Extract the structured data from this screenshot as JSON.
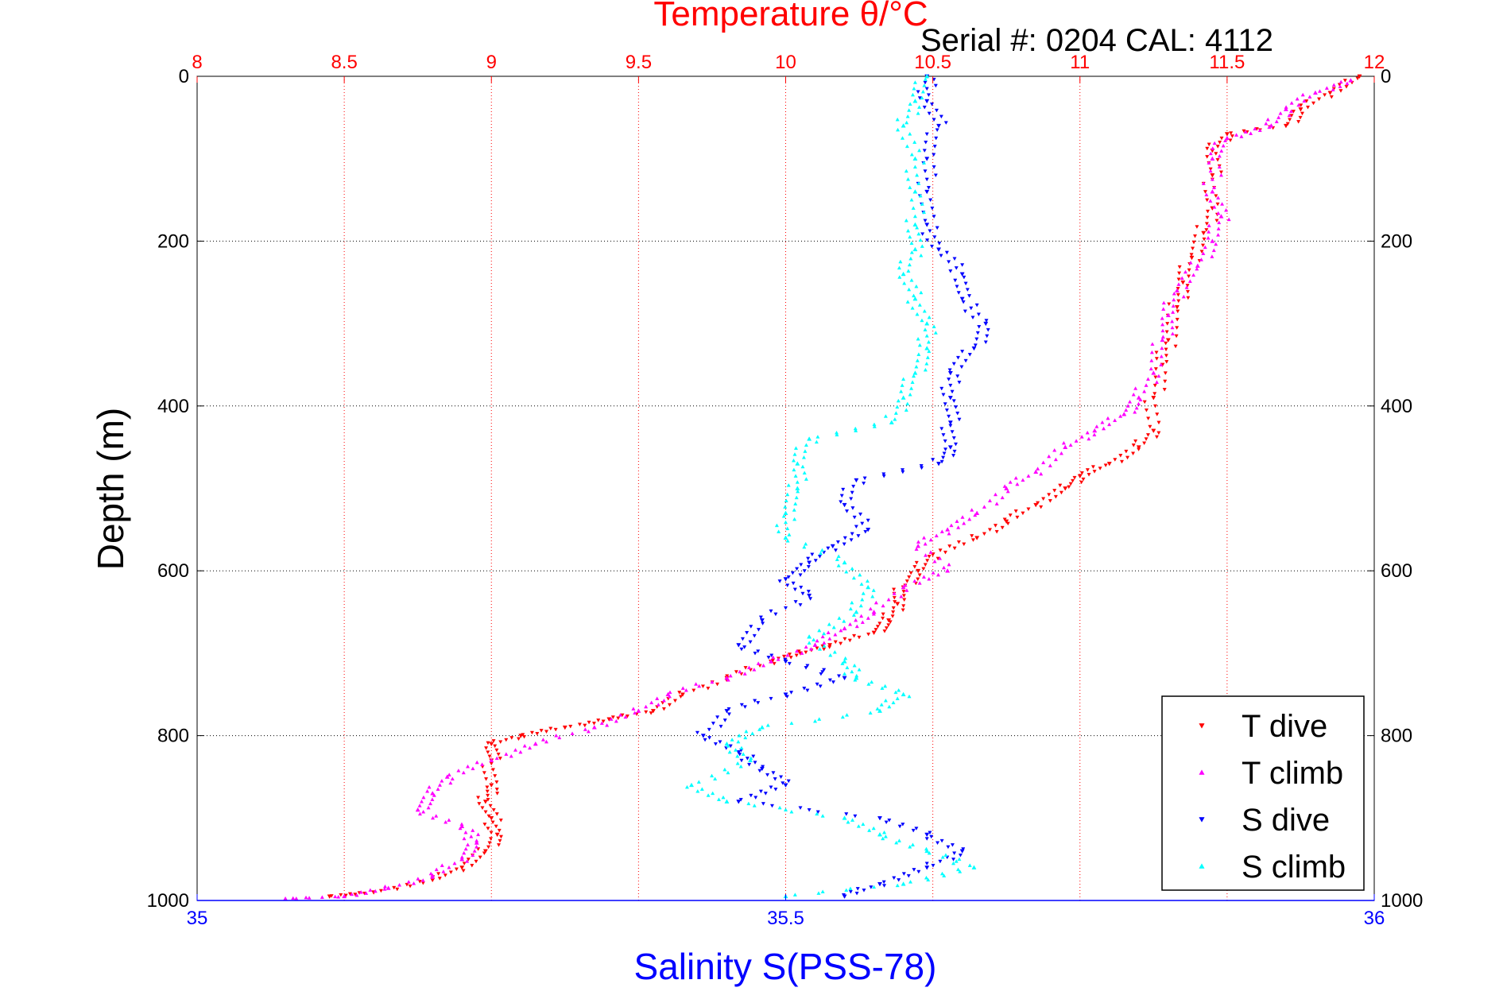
{
  "chart_data": {
    "type": "scatter",
    "title": "Temperature θ/°C",
    "subtitle": "Serial #: 0204  CAL: 4112",
    "ylabel": "Depth (m)",
    "xlabel": "Salinity S(PSS-78)",
    "xlabel_top": "Temperature θ/°C",
    "ylim": [
      1000,
      0
    ],
    "temperature_range": [
      8,
      12
    ],
    "salinity_range": [
      35,
      36
    ],
    "top_ticks": [
      "8",
      "8.5",
      "9",
      "9.5",
      "10",
      "10.5",
      "11",
      "11.5",
      "12"
    ],
    "bottom_ticks": [
      "35",
      "35.5",
      "36"
    ],
    "left_ticks": [
      "0",
      "200",
      "400",
      "600",
      "800",
      "1000"
    ],
    "right_ticks": [
      "0",
      "200",
      "400",
      "600",
      "800",
      "1000"
    ],
    "grid": true,
    "legend_position": "bottom-right",
    "colors": {
      "temperature_axis": "#ff0000",
      "salinity_axis": "#0000ff",
      "t_dive": "#ff0000",
      "t_climb": "#ff00ff",
      "s_dive": "#0000ff",
      "s_climb": "#00ffff"
    },
    "legend": [
      "T dive",
      "T climb",
      "S dive",
      "S climb"
    ],
    "series": [
      {
        "name": "T dive",
        "axis": "temperature",
        "marker": "triangle-down",
        "points": [
          [
            11.95,
            0
          ],
          [
            11.85,
            20
          ],
          [
            11.75,
            40
          ],
          [
            11.7,
            60
          ],
          [
            11.5,
            70
          ],
          [
            11.45,
            90
          ],
          [
            11.45,
            120
          ],
          [
            11.45,
            160
          ],
          [
            11.42,
            190
          ],
          [
            11.38,
            220
          ],
          [
            11.35,
            250
          ],
          [
            11.33,
            280
          ],
          [
            11.3,
            320
          ],
          [
            11.28,
            350
          ],
          [
            11.25,
            390
          ],
          [
            11.25,
            430
          ],
          [
            11.2,
            450
          ],
          [
            11.1,
            470
          ],
          [
            11.0,
            485
          ],
          [
            10.95,
            500
          ],
          [
            10.85,
            520
          ],
          [
            10.75,
            540
          ],
          [
            10.65,
            560
          ],
          [
            10.5,
            580
          ],
          [
            10.45,
            600
          ],
          [
            10.4,
            620
          ],
          [
            10.38,
            640
          ],
          [
            10.35,
            660
          ],
          [
            10.3,
            675
          ],
          [
            10.15,
            690
          ],
          [
            10.05,
            700
          ],
          [
            9.95,
            710
          ],
          [
            9.8,
            730
          ],
          [
            9.65,
            750
          ],
          [
            9.55,
            770
          ],
          [
            9.4,
            780
          ],
          [
            9.25,
            790
          ],
          [
            9.1,
            800
          ],
          [
            9.0,
            810
          ],
          [
            9.0,
            830
          ],
          [
            9.0,
            860
          ],
          [
            8.98,
            880
          ],
          [
            9.0,
            900
          ],
          [
            9.02,
            920
          ],
          [
            8.98,
            940
          ],
          [
            8.9,
            960
          ],
          [
            8.8,
            975
          ],
          [
            8.6,
            990
          ],
          [
            8.45,
            995
          ]
        ]
      },
      {
        "name": "T climb",
        "axis": "temperature",
        "marker": "triangle-up",
        "points": [
          [
            11.92,
            5
          ],
          [
            11.8,
            20
          ],
          [
            11.7,
            40
          ],
          [
            11.65,
            60
          ],
          [
            11.5,
            75
          ],
          [
            11.45,
            100
          ],
          [
            11.45,
            140
          ],
          [
            11.48,
            170
          ],
          [
            11.45,
            200
          ],
          [
            11.4,
            230
          ],
          [
            11.33,
            260
          ],
          [
            11.3,
            290
          ],
          [
            11.28,
            320
          ],
          [
            11.25,
            360
          ],
          [
            11.2,
            390
          ],
          [
            11.15,
            410
          ],
          [
            11.05,
            430
          ],
          [
            10.95,
            450
          ],
          [
            10.85,
            480
          ],
          [
            10.75,
            500
          ],
          [
            10.65,
            530
          ],
          [
            10.55,
            550
          ],
          [
            10.45,
            570
          ],
          [
            10.55,
            600
          ],
          [
            10.4,
            620
          ],
          [
            10.3,
            650
          ],
          [
            10.2,
            670
          ],
          [
            10.1,
            690
          ],
          [
            9.95,
            710
          ],
          [
            9.8,
            730
          ],
          [
            9.6,
            750
          ],
          [
            9.5,
            770
          ],
          [
            9.35,
            790
          ],
          [
            9.15,
            810
          ],
          [
            9.0,
            830
          ],
          [
            8.85,
            850
          ],
          [
            8.8,
            870
          ],
          [
            8.75,
            890
          ],
          [
            8.9,
            910
          ],
          [
            8.95,
            930
          ],
          [
            8.9,
            950
          ],
          [
            8.8,
            970
          ],
          [
            8.65,
            985
          ],
          [
            8.5,
            995
          ],
          [
            8.3,
            998
          ]
        ]
      },
      {
        "name": "S dive",
        "axis": "salinity",
        "marker": "triangle-down",
        "points": [
          [
            35.62,
            0
          ],
          [
            35.62,
            30
          ],
          [
            35.63,
            60
          ],
          [
            35.62,
            100
          ],
          [
            35.62,
            140
          ],
          [
            35.62,
            180
          ],
          [
            35.63,
            210
          ],
          [
            35.65,
            240
          ],
          [
            35.65,
            270
          ],
          [
            35.67,
            300
          ],
          [
            35.66,
            330
          ],
          [
            35.64,
            360
          ],
          [
            35.64,
            390
          ],
          [
            35.64,
            420
          ],
          [
            35.64,
            450
          ],
          [
            35.63,
            470
          ],
          [
            35.56,
            490
          ],
          [
            35.55,
            520
          ],
          [
            35.57,
            550
          ],
          [
            35.54,
            570
          ],
          [
            35.52,
            590
          ],
          [
            35.5,
            610
          ],
          [
            35.52,
            630
          ],
          [
            35.48,
            660
          ],
          [
            35.46,
            690
          ],
          [
            35.5,
            710
          ],
          [
            35.55,
            730
          ],
          [
            35.5,
            750
          ],
          [
            35.45,
            770
          ],
          [
            35.43,
            800
          ],
          [
            35.46,
            820
          ],
          [
            35.48,
            840
          ],
          [
            35.5,
            860
          ],
          [
            35.46,
            880
          ],
          [
            35.58,
            900
          ],
          [
            35.62,
            920
          ],
          [
            35.65,
            940
          ],
          [
            35.62,
            960
          ],
          [
            35.58,
            980
          ],
          [
            35.55,
            995
          ]
        ]
      },
      {
        "name": "S climb",
        "axis": "salinity",
        "marker": "triangle-up",
        "points": [
          [
            35.62,
            0
          ],
          [
            35.61,
            30
          ],
          [
            35.6,
            60
          ],
          [
            35.61,
            100
          ],
          [
            35.61,
            140
          ],
          [
            35.61,
            180
          ],
          [
            35.61,
            210
          ],
          [
            35.6,
            240
          ],
          [
            35.61,
            270
          ],
          [
            35.62,
            300
          ],
          [
            35.62,
            330
          ],
          [
            35.61,
            360
          ],
          [
            35.6,
            390
          ],
          [
            35.59,
            420
          ],
          [
            35.52,
            440
          ],
          [
            35.51,
            470
          ],
          [
            35.51,
            500
          ],
          [
            35.5,
            530
          ],
          [
            35.5,
            560
          ],
          [
            35.55,
            590
          ],
          [
            35.57,
            620
          ],
          [
            35.56,
            650
          ],
          [
            35.52,
            680
          ],
          [
            35.55,
            710
          ],
          [
            35.56,
            730
          ],
          [
            35.6,
            750
          ],
          [
            35.58,
            770
          ],
          [
            35.48,
            790
          ],
          [
            35.45,
            810
          ],
          [
            35.47,
            830
          ],
          [
            35.42,
            860
          ],
          [
            35.45,
            880
          ],
          [
            35.55,
            900
          ],
          [
            35.58,
            920
          ],
          [
            35.62,
            940
          ],
          [
            35.66,
            960
          ],
          [
            35.6,
            980
          ],
          [
            35.5,
            995
          ]
        ]
      }
    ]
  }
}
